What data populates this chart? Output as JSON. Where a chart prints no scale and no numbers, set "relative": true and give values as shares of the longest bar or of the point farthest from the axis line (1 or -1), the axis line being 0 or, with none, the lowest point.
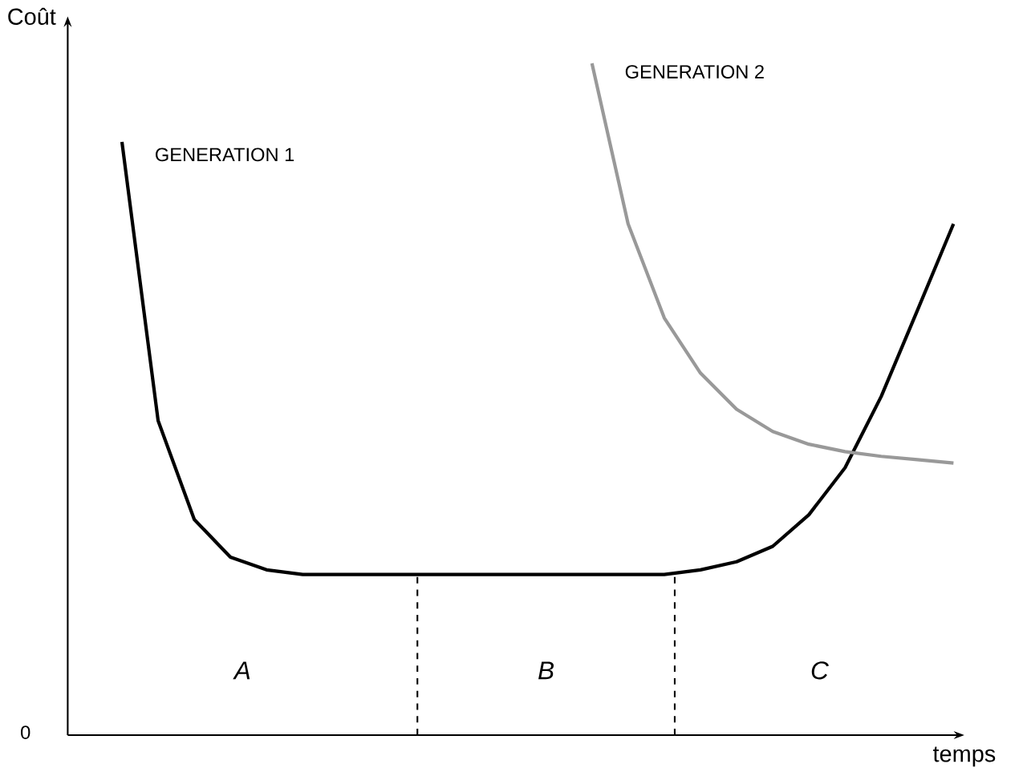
{
  "chart_data": {
    "type": "line",
    "relative": true,
    "xlabel": "temps",
    "ylabel": "Coût",
    "categories": [
      null,
      null,
      null,
      null,
      null,
      null,
      null,
      null,
      null,
      null,
      null,
      null,
      null,
      null,
      null,
      null,
      null,
      null,
      null,
      null,
      null,
      null,
      null,
      null
    ],
    "series": [
      {
        "name": "GENERATION 1",
        "color": "#000000",
        "values": [
          0.883,
          0.468,
          0.321,
          0.265,
          0.246,
          0.239,
          0.239,
          0.239,
          0.239,
          0.239,
          0.239,
          0.239,
          0.239,
          0.239,
          0.239,
          0.239,
          0.246,
          0.258,
          0.281,
          0.328,
          0.398,
          0.504,
          0.632,
          0.761
        ]
      },
      {
        "name": "GENERATION 2",
        "color": "#999999",
        "values": [
          null,
          null,
          null,
          null,
          null,
          null,
          null,
          null,
          null,
          null,
          null,
          null,
          null,
          1.0,
          0.761,
          0.621,
          0.539,
          0.485,
          0.452,
          0.433,
          0.422,
          0.415,
          0.41,
          0.405
        ]
      }
    ],
    "annotations": [
      "0",
      "A",
      "B",
      "C"
    ]
  }
}
